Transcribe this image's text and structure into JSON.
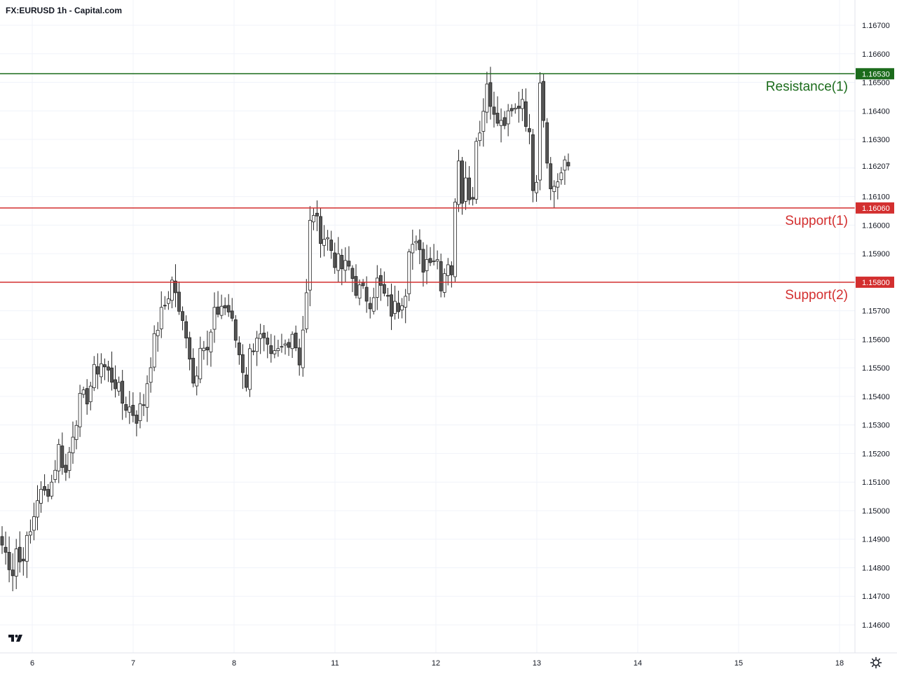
{
  "header": {
    "title": "FX:EURUSD 1h - Capital.com"
  },
  "icons": {
    "logo": "tradingview-logo-icon",
    "settings": "gear-icon"
  },
  "colors": {
    "resistance": "#1b6b1b",
    "support": "#d32f2f",
    "candle_up_body": "#ffffff",
    "candle_down_body": "#555555",
    "candle_outline": "#222222",
    "grid": "#f0f3fa",
    "axis_text": "#131722"
  },
  "chart_data": {
    "type": "candlestick",
    "title": "FX:EURUSD 1h - Capital.com",
    "x_tick_labels": [
      "6",
      "7",
      "8",
      "11",
      "12",
      "13",
      "14",
      "15",
      "18"
    ],
    "y_tick_labels": [
      "1.16700",
      "1.16600",
      "1.16500",
      "1.16400",
      "1.16300",
      "1.16100",
      "1.16000",
      "1.15900",
      "1.15700",
      "1.15600",
      "1.15500",
      "1.15400",
      "1.15300",
      "1.15200",
      "1.15100",
      "1.15000",
      "1.14900",
      "1.14800",
      "1.14700",
      "1.14600"
    ],
    "y_ticks": [
      1.167,
      1.166,
      1.165,
      1.164,
      1.163,
      1.161,
      1.16,
      1.159,
      1.157,
      1.156,
      1.155,
      1.154,
      1.153,
      1.152,
      1.151,
      1.15,
      1.149,
      1.148,
      1.147,
      1.146
    ],
    "ylim": [
      1.1454,
      1.1676
    ],
    "current_price": {
      "value": 1.16207,
      "label": "1.16207"
    },
    "levels": [
      {
        "name": "Resistance(1)",
        "value": 1.1653,
        "label": "1.16530",
        "kind": "resistance"
      },
      {
        "name": "Support(1)",
        "value": 1.1606,
        "label": "1.16060",
        "kind": "support"
      },
      {
        "name": "Support(2)",
        "value": 1.158,
        "label": "1.15800",
        "kind": "support"
      }
    ],
    "close_path": [
      [
        0,
        1.1488
      ],
      [
        3,
        1.1479
      ],
      [
        4,
        1.1487
      ],
      [
        5,
        1.1482
      ],
      [
        8,
        1.1492
      ],
      [
        10,
        1.1505
      ],
      [
        12,
        1.1506
      ],
      [
        14,
        1.151
      ],
      [
        16,
        1.1522
      ],
      [
        18,
        1.1513
      ],
      [
        20,
        1.1528
      ],
      [
        22,
        1.1538
      ],
      [
        24,
        1.154
      ],
      [
        26,
        1.1548
      ],
      [
        28,
        1.1552
      ],
      [
        30,
        1.1548
      ],
      [
        32,
        1.1545
      ],
      [
        34,
        1.1538
      ],
      [
        36,
        1.1536
      ],
      [
        38,
        1.1533
      ],
      [
        40,
        1.1538
      ],
      [
        42,
        1.1553
      ],
      [
        44,
        1.1565
      ],
      [
        46,
        1.1572
      ],
      [
        48,
        1.158
      ],
      [
        49,
        1.1577
      ],
      [
        50,
        1.1568
      ],
      [
        52,
        1.1563
      ],
      [
        53,
        1.1555
      ],
      [
        54,
        1.1545
      ],
      [
        55,
        1.155
      ],
      [
        56,
        1.156
      ],
      [
        58,
        1.1555
      ],
      [
        60,
        1.1568
      ],
      [
        62,
        1.1572
      ],
      [
        64,
        1.157
      ],
      [
        66,
        1.156
      ],
      [
        68,
        1.155
      ],
      [
        69,
        1.1545
      ],
      [
        70,
        1.1555
      ],
      [
        72,
        1.1562
      ],
      [
        74,
        1.1558
      ],
      [
        76,
        1.1552
      ],
      [
        78,
        1.1555
      ],
      [
        80,
        1.1558
      ],
      [
        82,
        1.1563
      ],
      [
        84,
        1.1553
      ],
      [
        86,
        1.1575
      ],
      [
        87,
        1.16
      ],
      [
        88,
        1.1605
      ],
      [
        89,
        1.16
      ],
      [
        90,
        1.1597
      ],
      [
        92,
        1.1595
      ],
      [
        94,
        1.1588
      ],
      [
        96,
        1.1585
      ],
      [
        98,
        1.1585
      ],
      [
        100,
        1.1578
      ],
      [
        102,
        1.1576
      ],
      [
        104,
        1.1574
      ],
      [
        106,
        1.158
      ],
      [
        108,
        1.1575
      ],
      [
        110,
        1.157
      ],
      [
        112,
        1.1572
      ],
      [
        114,
        1.1578
      ],
      [
        115,
        1.1594
      ],
      [
        117,
        1.1592
      ],
      [
        119,
        1.1586
      ],
      [
        121,
        1.159
      ],
      [
        123,
        1.1588
      ],
      [
        124,
        1.158
      ],
      [
        126,
        1.1588
      ],
      [
        127,
        1.1584
      ],
      [
        128,
        1.1606
      ],
      [
        129,
        1.1625
      ],
      [
        130,
        1.161
      ],
      [
        131,
        1.162
      ],
      [
        132,
        1.1608
      ],
      [
        133,
        1.1612
      ],
      [
        134,
        1.163
      ],
      [
        136,
        1.164
      ],
      [
        137,
        1.165
      ],
      [
        138,
        1.1645
      ],
      [
        139,
        1.1637
      ],
      [
        141,
        1.1635
      ],
      [
        143,
        1.1637
      ],
      [
        145,
        1.164
      ],
      [
        147,
        1.1645
      ],
      [
        149,
        1.163
      ],
      [
        150,
        1.1615
      ],
      [
        151,
        1.1618
      ],
      [
        152,
        1.1652
      ],
      [
        153,
        1.1638
      ],
      [
        154,
        1.1625
      ],
      [
        155,
        1.1612
      ],
      [
        156,
        1.1614
      ],
      [
        157,
        1.1616
      ],
      [
        158,
        1.1618
      ],
      [
        159,
        1.162
      ],
      [
        160,
        1.16207
      ]
    ]
  }
}
